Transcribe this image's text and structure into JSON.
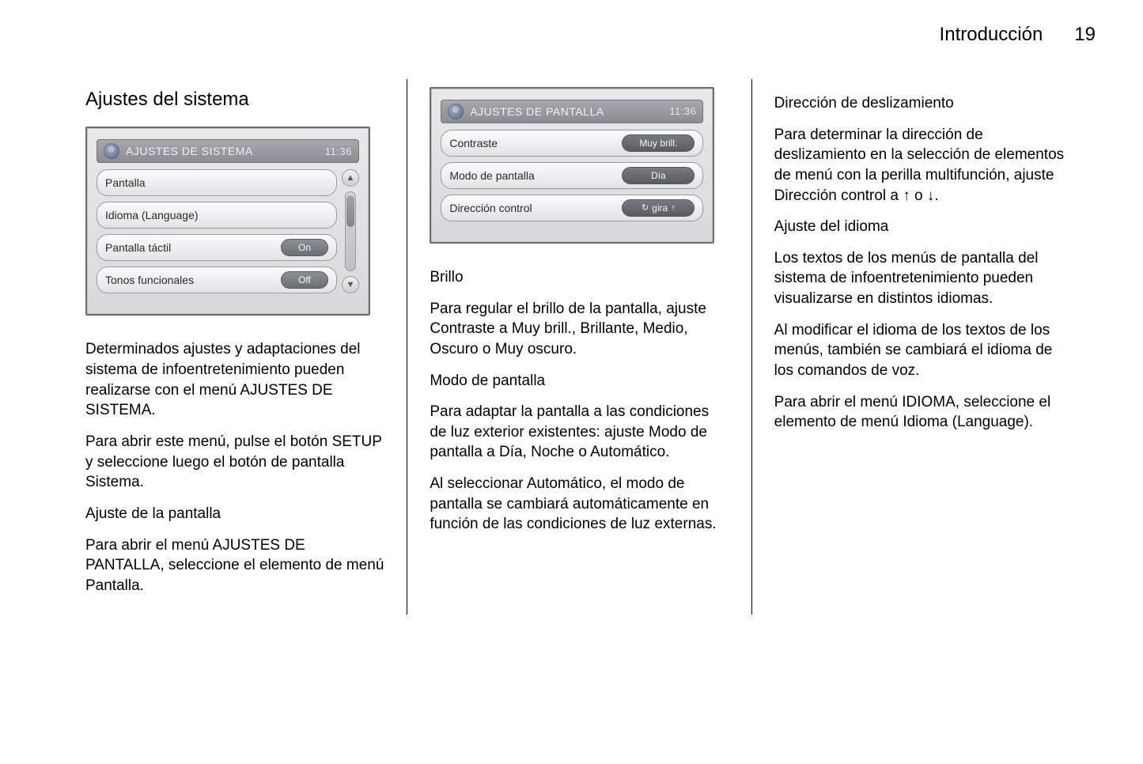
{
  "header": {
    "chapter": "Introducción",
    "page_number": "19"
  },
  "col1": {
    "heading": "Ajustes del sistema",
    "device": {
      "title": "AJUSTES DE SISTEMA",
      "time": "11:36",
      "title_bg": "#8c8c92",
      "row_bg": "#e3e3e7",
      "rows": [
        {
          "label": "Pantalla",
          "pill": null
        },
        {
          "label": "Idioma (Language)",
          "pill": null
        },
        {
          "label": "Pantalla táctil",
          "pill": "On"
        },
        {
          "label": "Tonos funcionales",
          "pill": "Off"
        }
      ],
      "has_scrollbar": true
    },
    "p1": "Determinados ajustes y adaptaciones del sistema de infoentretenimiento pueden realizarse con el menú AJUSTES DE SISTEMA.",
    "p2": "Para abrir este menú, pulse el botón SETUP y seleccione luego el botón de pantalla Sistema.",
    "sub1": "Ajuste de la pantalla",
    "p3": "Para abrir el menú AJUSTES DE PANTALLA, seleccione el elemento de menú Pantalla."
  },
  "col2": {
    "device": {
      "title": "AJUSTES DE PANTALLA",
      "time": "11:36",
      "rows": [
        {
          "label": "Contraste",
          "pill": "Muy brill."
        },
        {
          "label": "Modo de pantalla",
          "pill": "Día"
        },
        {
          "label": "Dirección control",
          "pill_complex": {
            "left_sym": "↻",
            "mid": "gira",
            "right_sym": "↑"
          }
        }
      ],
      "has_scrollbar": false
    },
    "sub1": "Brillo",
    "p1": "Para regular el brillo de la pantalla, ajuste Contraste a Muy brill., Brillante, Medio, Oscuro o Muy oscuro.",
    "sub2": "Modo de pantalla",
    "p2": "Para adaptar la pantalla a las condiciones de luz exterior existentes: ajuste Modo de pantalla a Día, Noche o Automático.",
    "p3": "Al seleccionar Automático, el modo de pantalla se cambiará automáticamente en función de las condiciones de luz externas."
  },
  "col3": {
    "sub1": "Dirección de deslizamiento",
    "p1a": "Para determinar la dirección de deslizamiento en la selección de elementos de menú con la perilla multifunción, ajuste Dirección control a ",
    "p1_sym1": "↑",
    "p1_mid": " o ",
    "p1_sym2": "↓",
    "p1b": ".",
    "sub2": "Ajuste del idioma",
    "p2": "Los textos de los menús de pantalla del sistema de infoentretenimiento pueden visualizarse en distintos idiomas.",
    "p3": "Al modificar el idioma de los textos de los menús, también se cambiará el idioma de los comandos de voz.",
    "p4": "Para abrir el menú IDIOMA, seleccione el elemento de menú Idioma (Language)."
  },
  "colors": {
    "text": "#000000",
    "panel_border": "#6d6d6d",
    "pill_bg": "#6d6d74",
    "pill_text": "#f5f5f7"
  }
}
